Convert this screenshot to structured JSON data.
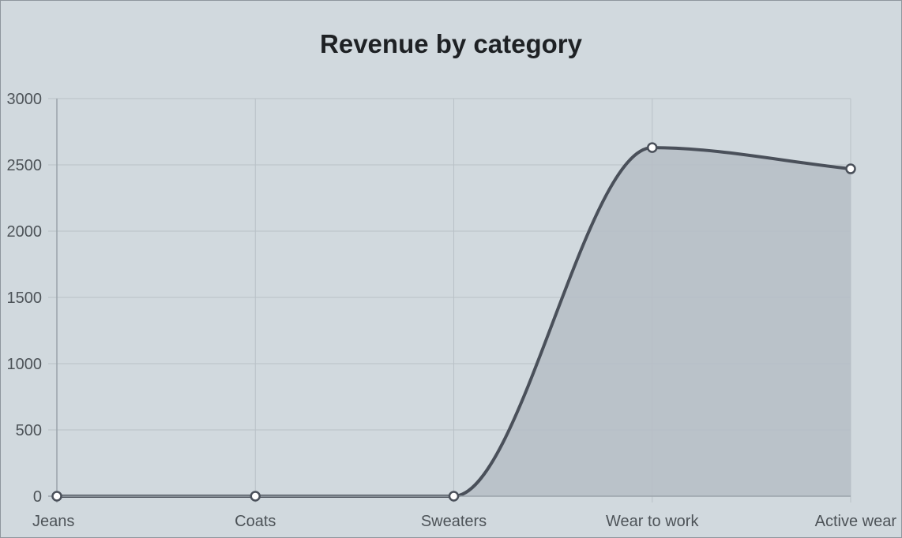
{
  "chart_data": {
    "type": "area",
    "title": "Revenue by category",
    "xlabel": "",
    "ylabel": "",
    "categories": [
      "Jeans",
      "Coats",
      "Sweaters",
      "Wear to work",
      "Active wear"
    ],
    "series": [
      {
        "values": [
          0,
          0,
          0,
          2630,
          2470
        ]
      }
    ],
    "ylim": [
      0,
      3000
    ],
    "yticks": [
      "0",
      "500",
      "1000",
      "1500",
      "2000",
      "2500",
      "3000"
    ],
    "grid": true,
    "smooth": true,
    "colors": {
      "background": "#d1d9de",
      "line": "#4a505a",
      "fill": "#b6bdc5",
      "point_fill": "#ffffff"
    }
  }
}
